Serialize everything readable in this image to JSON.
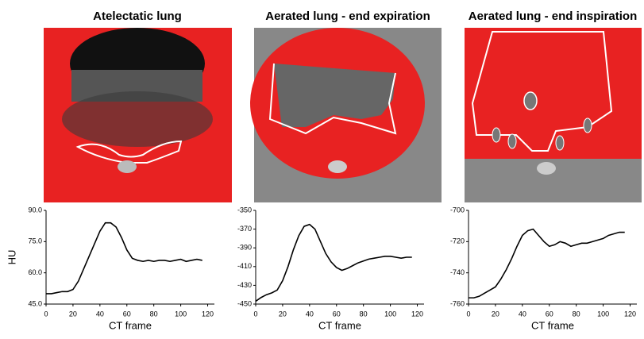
{
  "chart_data": [
    {
      "type": "line",
      "title": "Atelectatic lung",
      "x_label": "CT frame",
      "y_label": "HU",
      "x": [
        0,
        4,
        8,
        12,
        16,
        20,
        24,
        28,
        32,
        36,
        40,
        44,
        48,
        52,
        56,
        60,
        64,
        68,
        72,
        76,
        80,
        84,
        88,
        92,
        96,
        100,
        104,
        108,
        112,
        116
      ],
      "series": [
        {
          "color": "#000000",
          "values": [
            50,
            50,
            50.5,
            51,
            51,
            52,
            56,
            62,
            68,
            74,
            80,
            84,
            84,
            82,
            77,
            71,
            67,
            66,
            65.5,
            66,
            65.5,
            66,
            66,
            65.5,
            66,
            66.5,
            65.5,
            66,
            66.5,
            66
          ]
        }
      ],
      "xlim": [
        0,
        125
      ],
      "xticks": [
        0,
        20,
        40,
        60,
        80,
        100,
        120
      ],
      "ylim": [
        45,
        90
      ],
      "yticks": [
        {
          "value": 45,
          "label": "45.0"
        },
        {
          "value": 60,
          "label": "60.0"
        },
        {
          "value": 75,
          "label": "75.0"
        },
        {
          "value": 90,
          "label": "90.0"
        }
      ]
    },
    {
      "type": "line",
      "title": "Aerated lung - end expiration",
      "x_label": "CT frame",
      "x": [
        0,
        4,
        8,
        12,
        16,
        20,
        24,
        28,
        32,
        36,
        40,
        44,
        48,
        52,
        56,
        60,
        64,
        68,
        72,
        76,
        80,
        84,
        88,
        92,
        96,
        100,
        104,
        108,
        112,
        116
      ],
      "series": [
        {
          "color": "#000000",
          "values": [
            -447,
            -443,
            -440,
            -438,
            -435,
            -425,
            -410,
            -392,
            -377,
            -367,
            -365,
            -370,
            -383,
            -396,
            -405,
            -411,
            -414,
            -412,
            -409,
            -406,
            -404,
            -402,
            -401,
            -400,
            -399,
            -399,
            -400,
            -401,
            -400,
            -400
          ]
        }
      ],
      "xlim": [
        0,
        125
      ],
      "xticks": [
        0,
        20,
        40,
        60,
        80,
        100,
        120
      ],
      "ylim": [
        -450,
        -350
      ],
      "yticks": [
        -450,
        -430,
        -410,
        -390,
        -370,
        -350
      ]
    },
    {
      "type": "line",
      "title": "Aerated lung - end inspiration",
      "x_label": "CT frame",
      "x": [
        0,
        4,
        8,
        12,
        16,
        20,
        24,
        28,
        32,
        36,
        40,
        44,
        48,
        52,
        56,
        60,
        64,
        68,
        72,
        76,
        80,
        84,
        88,
        92,
        96,
        100,
        104,
        108,
        112,
        116
      ],
      "series": [
        {
          "color": "#000000",
          "values": [
            -756,
            -756,
            -755,
            -753,
            -751,
            -749,
            -744,
            -738,
            -731,
            -723,
            -716,
            -713,
            -712,
            -716,
            -720,
            -723,
            -722,
            -720,
            -721,
            -723,
            -722,
            -721,
            -721,
            -720,
            -719,
            -718,
            -716,
            -715,
            -714,
            -714
          ]
        }
      ],
      "xlim": [
        0,
        125
      ],
      "xticks": [
        0,
        20,
        40,
        60,
        80,
        100,
        120
      ],
      "ylim": [
        -760,
        -700
      ],
      "yticks": [
        -760,
        -740,
        -720,
        -700
      ]
    }
  ]
}
